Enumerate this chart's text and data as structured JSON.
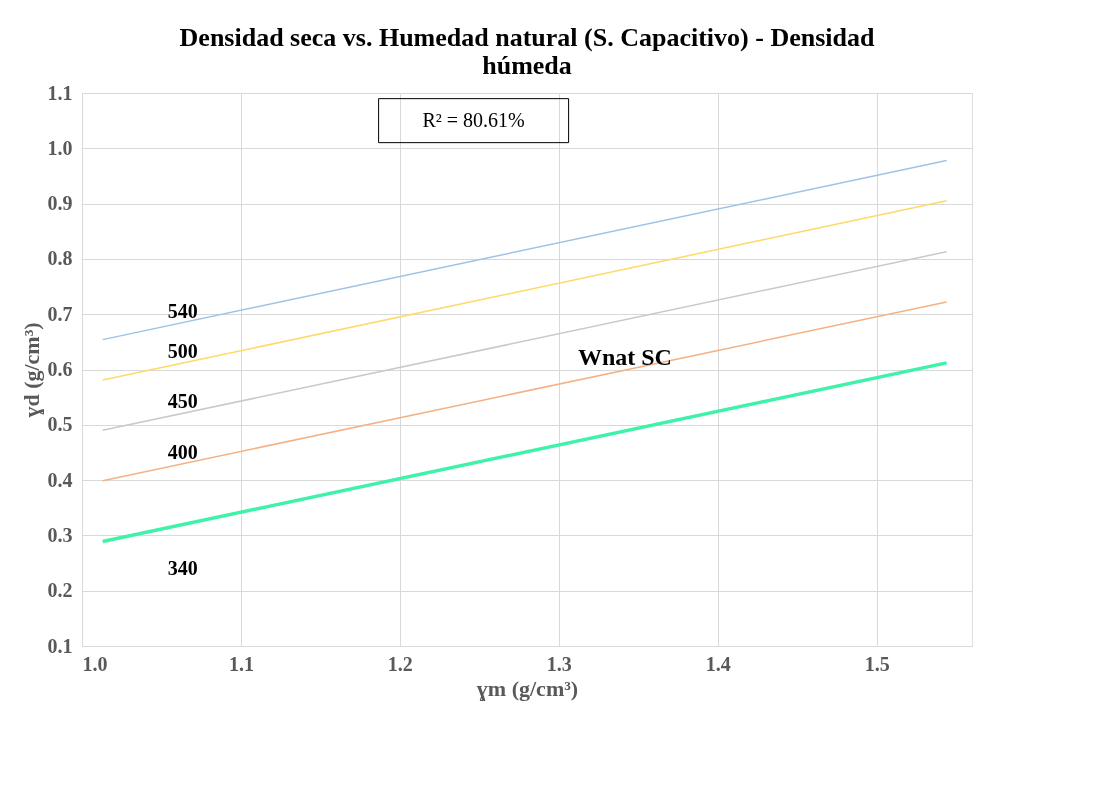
{
  "chart_data": {
    "type": "line",
    "title": "Densidad seca vs. Humedad natural (S. Capacitivo) - Densidad húmeda",
    "xlabel": "ɣm (g/cm³)",
    "ylabel": "ɣd (g/cm³)",
    "x": [
      1.013,
      1.544
    ],
    "series": [
      {
        "name": "540",
        "color": "#9dc3e6",
        "values": [
          0.654,
          0.978
        ]
      },
      {
        "name": "500",
        "color": "#ffd966",
        "values": [
          0.581,
          0.905
        ]
      },
      {
        "name": "450",
        "color": "#c9c9c9",
        "values": [
          0.49,
          0.813
        ]
      },
      {
        "name": "400",
        "color": "#f4b183",
        "values": [
          0.399,
          0.722
        ]
      },
      {
        "name": "340",
        "color": "#3ef2a8",
        "values": [
          0.289,
          0.612
        ]
      }
    ],
    "xlim": [
      1.0,
      1.56
    ],
    "ylim": [
      0.1,
      1.1
    ],
    "xticks": [
      {
        "value": 1.0,
        "label": "1.0"
      },
      1.1,
      1.2,
      1.3,
      1.4,
      1.5
    ],
    "yticks": [
      0.1,
      0.2,
      0.3,
      0.4,
      0.5,
      0.6,
      0.7,
      0.8,
      0.9,
      {
        "value": 1.0,
        "label": "1.0"
      },
      1.1
    ],
    "grid": true,
    "legend": false,
    "marker": "none",
    "line_style": "solid",
    "annotations": [
      "R² = 80.61%",
      "Wnat SC"
    ]
  }
}
